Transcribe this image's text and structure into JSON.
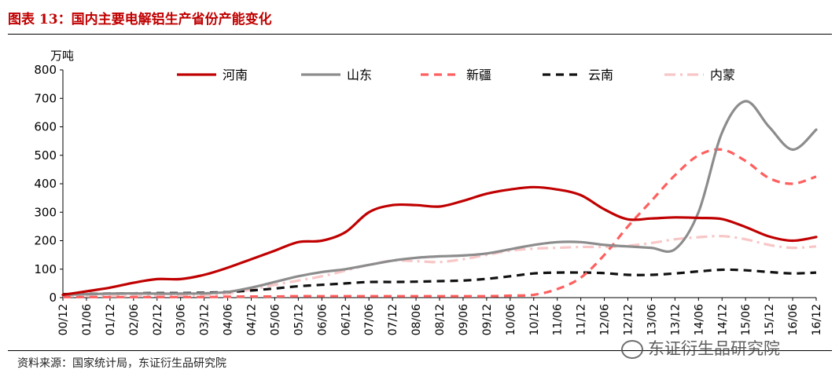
{
  "figure": {
    "title": "图表 13：国内主要电解铝生产省份产能变化",
    "source": "资料来源：国家统计局，东证衍生品研究院",
    "watermark": "东证衍生品研究院"
  },
  "chart_data": {
    "type": "line",
    "title": "",
    "ylabel": "万吨",
    "xlabel": "",
    "ylim": [
      0,
      800
    ],
    "yticks": [
      0,
      100,
      200,
      300,
      400,
      500,
      600,
      700,
      800
    ],
    "grid": false,
    "legend_position": "top",
    "categories": [
      "00/12",
      "01/06",
      "01/12",
      "02/06",
      "02/12",
      "03/06",
      "03/12",
      "04/06",
      "04/12",
      "05/06",
      "05/12",
      "06/06",
      "06/12",
      "07/06",
      "07/12",
      "08/06",
      "08/12",
      "09/06",
      "09/12",
      "10/06",
      "10/12",
      "11/06",
      "11/12",
      "12/06",
      "12/12",
      "13/06",
      "13/12",
      "14/06",
      "14/12",
      "15/06",
      "15/12",
      "16/06",
      "16/12"
    ],
    "series": [
      {
        "name": "河南",
        "color": "#c00000",
        "dash": "solid",
        "values": [
          10,
          22,
          35,
          52,
          65,
          65,
          80,
          105,
          135,
          165,
          195,
          200,
          230,
          300,
          325,
          325,
          320,
          340,
          365,
          380,
          388,
          380,
          360,
          310,
          275,
          278,
          282,
          280,
          276,
          248,
          215,
          200,
          213
        ]
      },
      {
        "name": "山东",
        "color": "#8c8c8c",
        "dash": "solid",
        "values": [
          10,
          12,
          14,
          15,
          14,
          14,
          15,
          20,
          35,
          55,
          75,
          90,
          100,
          115,
          130,
          140,
          145,
          148,
          155,
          170,
          185,
          195,
          195,
          185,
          180,
          175,
          170,
          300,
          580,
          690,
          600,
          520,
          590
        ]
      },
      {
        "name": "新疆",
        "color": "#ff5f5f",
        "dash": "dashed",
        "values": [
          2,
          2,
          2,
          2,
          2,
          2,
          2,
          3,
          4,
          4,
          5,
          5,
          5,
          5,
          5,
          5,
          5,
          5,
          5,
          7,
          10,
          30,
          70,
          150,
          250,
          340,
          430,
          500,
          520,
          480,
          420,
          400,
          425
        ]
      },
      {
        "name": "云南",
        "color": "#111111",
        "dash": "dashed",
        "values": [
          12,
          13,
          14,
          15,
          16,
          16,
          17,
          20,
          25,
          32,
          40,
          45,
          50,
          55,
          55,
          56,
          58,
          60,
          66,
          75,
          85,
          88,
          88,
          86,
          80,
          80,
          85,
          92,
          98,
          96,
          90,
          85,
          88
        ]
      },
      {
        "name": "内蒙",
        "color": "#f8c6c6",
        "dash": "dashdot",
        "values": [
          5,
          5,
          5,
          5,
          6,
          6,
          8,
          14,
          28,
          45,
          60,
          75,
          95,
          115,
          130,
          128,
          125,
          135,
          150,
          165,
          172,
          175,
          178,
          178,
          182,
          192,
          205,
          212,
          216,
          205,
          185,
          175,
          180
        ]
      }
    ]
  }
}
